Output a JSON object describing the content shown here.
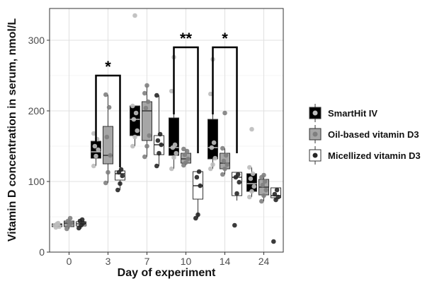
{
  "chart_data": {
    "type": "box",
    "xlabel": "Day of experiment",
    "ylabel": "Vitamin D concentration in serum, nmol/L",
    "ylim": [
      0,
      345
    ],
    "yticks": [
      0,
      100,
      200,
      300
    ],
    "grid": true,
    "legend_position": "right",
    "categories": [
      "0",
      "3",
      "7",
      "10",
      "14",
      "24"
    ],
    "series": [
      {
        "name": "SmartHit IV",
        "fill": "#000000",
        "point_color": "#bdbdbd",
        "boxes": [
          {
            "q1": 36,
            "median": 38,
            "q3": 40,
            "whisker_low": 35,
            "whisker_high": 41
          },
          {
            "q1": 133,
            "median": 142,
            "q3": 157,
            "whisker_low": 122,
            "whisker_high": 168
          },
          {
            "q1": 165,
            "median": 188,
            "q3": 207,
            "whisker_low": 150,
            "whisker_high": 207
          },
          {
            "q1": 137,
            "median": 148,
            "q3": 190,
            "whisker_low": 118,
            "whisker_high": 228
          },
          {
            "q1": 132,
            "median": 148,
            "q3": 188,
            "whisker_low": 118,
            "whisker_high": 224
          },
          {
            "q1": 86,
            "median": 97,
            "q3": 111,
            "whisker_low": 78,
            "whisker_high": 120
          }
        ],
        "points": [
          [
            38,
            40,
            36,
            35,
            41
          ],
          [
            122,
            136,
            145,
            150,
            160,
            168
          ],
          [
            150,
            163,
            172,
            188,
            197,
            207,
            335
          ],
          [
            118,
            134,
            140,
            148,
            152,
            228,
            276
          ],
          [
            118,
            124,
            133,
            148,
            155,
            224,
            273
          ],
          [
            78,
            86,
            93,
            104,
            111,
            120,
            174
          ]
        ]
      },
      {
        "name": "Oil-based vitamin D3",
        "fill": "#a6a6a6",
        "point_color": "#7f7f7f",
        "boxes": [
          {
            "q1": 36,
            "median": 41,
            "q3": 44,
            "whisker_low": 33,
            "whisker_high": 48
          },
          {
            "q1": 125,
            "median": 137,
            "q3": 178,
            "whisker_low": 98,
            "whisker_high": 223
          },
          {
            "q1": 158,
            "median": 200,
            "q3": 213,
            "whisker_low": 135,
            "whisker_high": 236
          },
          {
            "q1": 126,
            "median": 132,
            "q3": 140,
            "whisker_low": 123,
            "whisker_high": 146
          },
          {
            "q1": 118,
            "median": 126,
            "q3": 140,
            "whisker_low": 110,
            "whisker_high": 147
          },
          {
            "q1": 81,
            "median": 92,
            "q3": 103,
            "whisker_low": 72,
            "whisker_high": 109
          }
        ],
        "points": [
          [
            33,
            38,
            41,
            44,
            48
          ],
          [
            98,
            113,
            137,
            163,
            205,
            223
          ],
          [
            135,
            150,
            165,
            204,
            213,
            225,
            236
          ],
          [
            123,
            127,
            132,
            138,
            143,
            146
          ],
          [
            110,
            118,
            124,
            129,
            137,
            147,
            197
          ],
          [
            72,
            80,
            88,
            95,
            100,
            106,
            109
          ]
        ]
      },
      {
        "name": "Micellized vitamin D3",
        "fill": "#ffffff",
        "point_color": "#262626",
        "boxes": [
          {
            "q1": 37,
            "median": 40,
            "q3": 43,
            "whisker_low": 33,
            "whisker_high": 46
          },
          {
            "q1": 102,
            "median": 111,
            "q3": 115,
            "whisker_low": 88,
            "whisker_high": 118
          },
          {
            "q1": 138,
            "median": 152,
            "q3": 165,
            "whisker_low": 122,
            "whisker_high": 222
          },
          {
            "q1": 75,
            "median": 94,
            "q3": 114,
            "whisker_low": 48,
            "whisker_high": 114
          },
          {
            "q1": 80,
            "median": 106,
            "q3": 113,
            "whisker_low": 73,
            "whisker_high": 113
          },
          {
            "q1": 77,
            "median": 80,
            "q3": 91,
            "whisker_low": 74,
            "whisker_high": 91
          }
        ],
        "points": [
          [
            34,
            38,
            41,
            44,
            46
          ],
          [
            88,
            97,
            108,
            113,
            117
          ],
          [
            122,
            140,
            152,
            158,
            167,
            222
          ],
          [
            48,
            53,
            94,
            106,
            114
          ],
          [
            38,
            83,
            99,
            106,
            110
          ],
          [
            15,
            74,
            78,
            82,
            88
          ]
        ]
      }
    ],
    "significance": [
      {
        "category": "3",
        "label": "*",
        "from_series": 0,
        "to_series": 2,
        "y_top": 250,
        "drop_left": 155,
        "drop_right": 120
      },
      {
        "category": "10",
        "label": "**",
        "from_series": 0,
        "to_series": 2,
        "y_top": 290,
        "drop_left": 195,
        "drop_right": 140
      },
      {
        "category": "14",
        "label": "*",
        "from_series": 0,
        "to_series": 2,
        "y_top": 290,
        "drop_left": 195,
        "drop_right": 140
      }
    ]
  }
}
